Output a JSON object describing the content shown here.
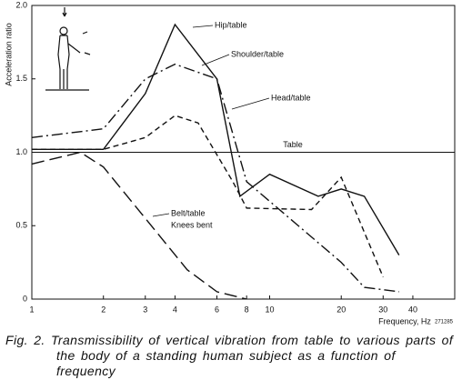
{
  "chart_data": {
    "type": "line",
    "y_label": "Acceleration ratio",
    "x_label": "Frequency, Hz",
    "figure_code": "271285",
    "caption": "Fig. 2. Transmissibility of vertical vibration from table to various parts of the body of a standing human subject as a function of frequency",
    "xscale": "log",
    "xlim": [
      1,
      60
    ],
    "xticks": [
      1,
      2,
      3,
      4,
      6,
      8,
      10,
      20,
      30,
      40
    ],
    "ylim": [
      0,
      2
    ],
    "yticks": [
      0,
      0.5,
      {
        "value": 1,
        "label": "1.0"
      },
      1.5,
      {
        "value": 2,
        "label": "2.0"
      }
    ],
    "reference_line": {
      "value": 1,
      "label": "Table"
    },
    "series": [
      {
        "name": "Hip/table",
        "color": "#111111",
        "style": "solid",
        "x": [
          1,
          2,
          3,
          4,
          6,
          7.5,
          10,
          16,
          20,
          25,
          35
        ],
        "values": [
          1.02,
          1.02,
          1.4,
          1.87,
          1.5,
          0.7,
          0.85,
          0.7,
          0.75,
          0.7,
          0.3
        ]
      },
      {
        "name": "Shoulder/table",
        "color": "#111111",
        "style": "dashdot",
        "x": [
          1,
          2,
          3,
          4,
          6,
          8,
          20,
          25,
          35
        ],
        "values": [
          1.1,
          1.16,
          1.5,
          1.6,
          1.5,
          0.8,
          0.25,
          0.08,
          0.05
        ]
      },
      {
        "name": "Head/table",
        "color": "#111111",
        "style": "dashed",
        "x": [
          1,
          2,
          3,
          4,
          5,
          7,
          8,
          15,
          20,
          30
        ],
        "values": [
          1.02,
          1.02,
          1.1,
          1.25,
          1.2,
          0.8,
          0.62,
          0.61,
          0.83,
          0.15
        ]
      },
      {
        "name": "Belt/table",
        "color": "#111111",
        "style": "longdash",
        "x": [
          1,
          1.6,
          2,
          3,
          4.5,
          6,
          8
        ],
        "values": [
          0.92,
          1.0,
          0.9,
          0.55,
          0.2,
          0.05,
          0
        ]
      }
    ],
    "annotations": [
      "Knees bent"
    ]
  }
}
